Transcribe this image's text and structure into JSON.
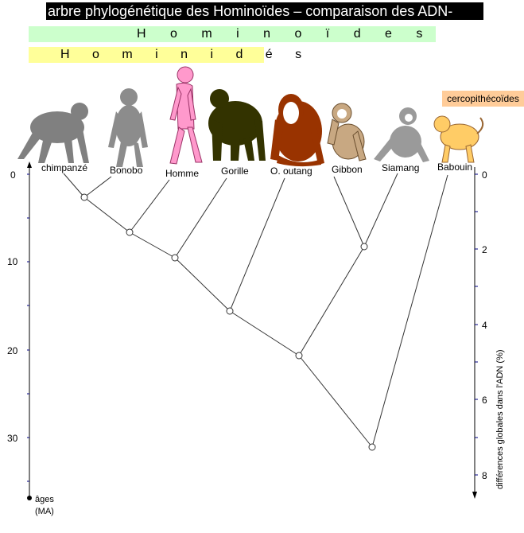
{
  "title": "arbre phylogénétique des Hominoïdes – comparaison des ADN-",
  "groups": {
    "hominoides": "H o m i n o ï d e s",
    "hominides": "H o m i n i d é s",
    "cercopithecoides": "cercopithécoïdes"
  },
  "species": [
    "chimpanzé",
    "Bonobo",
    "Homme",
    "Gorille",
    "O. outang",
    "Gibbon",
    "Siamang",
    "Babouin"
  ],
  "left_axis": {
    "label_line1": "âges",
    "label_line2": "(MA)",
    "ticks": [
      "0",
      "10",
      "20",
      "30"
    ]
  },
  "right_axis": {
    "label": "différences globales dans l'ADN (%)",
    "ticks": [
      "0",
      "2",
      "4",
      "6",
      "8"
    ]
  },
  "colors": {
    "chimpanzee": "#808080",
    "bonobo": "#8c8c8c",
    "human": "#ff99cc",
    "gorilla": "#333300",
    "orangutan": "#993300",
    "gibbon": "#c8a882",
    "siamang": "#9a9a9a",
    "baboon": "#ffcc66",
    "axis": "#000080",
    "hominoides_band": "#ccffcc",
    "hominides_band": "#ffff99",
    "cercopithecoides_band": "#ffcc99"
  }
}
